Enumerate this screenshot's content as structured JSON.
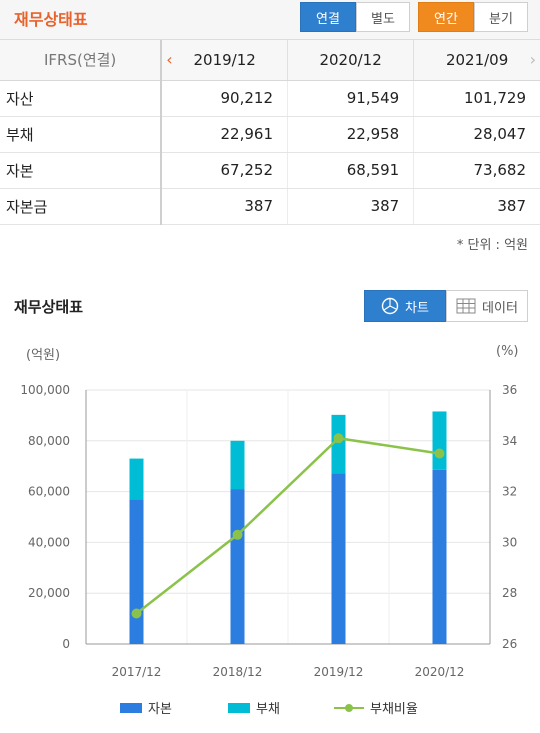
{
  "header": {
    "title": "재무상태표",
    "consolidated_label": "연결",
    "separate_label": "별도",
    "annual_label": "연간",
    "quarterly_label": "분기"
  },
  "table": {
    "corner_label": "IFRS(연결)",
    "periods": [
      "2019/12",
      "2020/12",
      "2021/09"
    ],
    "rows": [
      {
        "label": "자산",
        "values": [
          "90,212",
          "91,549",
          "101,729"
        ]
      },
      {
        "label": "부채",
        "values": [
          "22,961",
          "22,958",
          "28,047"
        ]
      },
      {
        "label": "자본",
        "values": [
          "67,252",
          "68,591",
          "73,682"
        ]
      },
      {
        "label": "자본금",
        "values": [
          "387",
          "387",
          "387"
        ]
      }
    ],
    "unit_note": "* 단위 : 억원"
  },
  "chart_section": {
    "title": "재무상태표",
    "chart_tab": "차트",
    "data_tab": "데이터",
    "left_unit": "(억원)",
    "right_unit": "(%)"
  },
  "colors": {
    "equity": "#2b7de0",
    "liability": "#00bcd4",
    "ratio_line": "#8bc34a"
  },
  "chart_data": {
    "type": "bar",
    "categories": [
      "2017/12",
      "2018/12",
      "2019/12",
      "2020/12"
    ],
    "series": [
      {
        "name": "자본",
        "values": [
          57000,
          61000,
          67252,
          68591
        ]
      },
      {
        "name": "부채",
        "values": [
          16000,
          19000,
          22961,
          22958
        ]
      },
      {
        "name": "부채비율",
        "values": [
          27.2,
          30.3,
          34.1,
          33.5
        ],
        "axis": "right",
        "kind": "line"
      }
    ],
    "ylim": [
      0,
      100000
    ],
    "yticks": [
      "0",
      "20,000",
      "40,000",
      "60,000",
      "80,000",
      "100,000"
    ],
    "y2lim": [
      26,
      36
    ],
    "y2ticks": [
      "26",
      "28",
      "30",
      "32",
      "34",
      "36"
    ],
    "stacked": true,
    "grid": true,
    "legend_position": "bottom"
  }
}
